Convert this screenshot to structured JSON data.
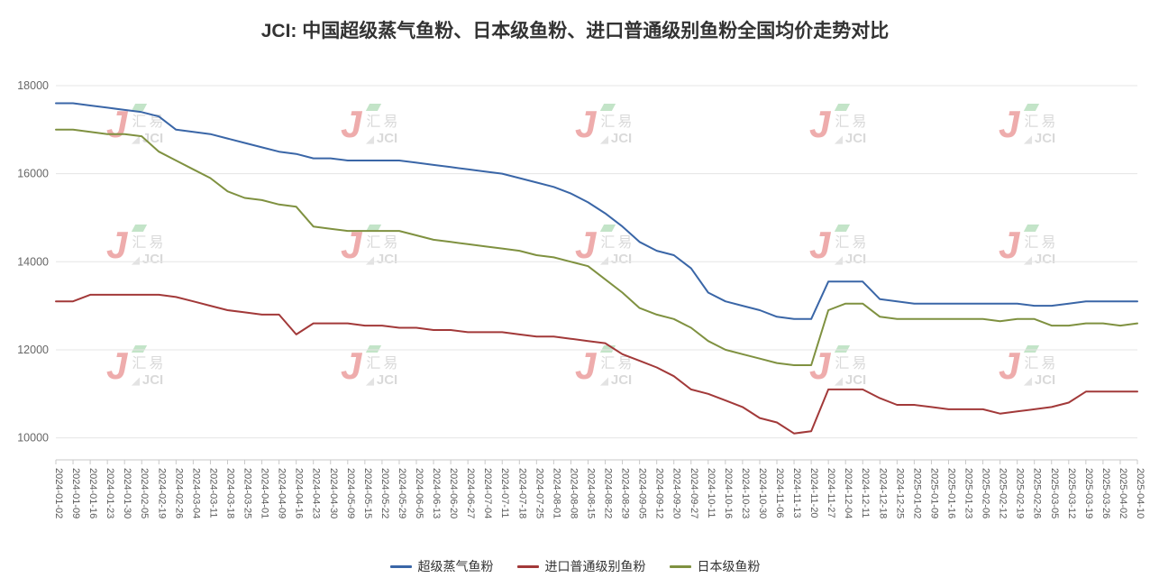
{
  "watermark": {
    "mark": "J",
    "text_cn": "汇易",
    "text_en": "JCI"
  },
  "chart_data": {
    "type": "line",
    "title": "JCI: 中国超级蒸气鱼粉、日本级鱼粉、进口普通级别鱼粉全国均价走势对比",
    "xlabel": "",
    "ylabel": "",
    "ylim": [
      9500,
      18000
    ],
    "yticks": [
      10000,
      12000,
      14000,
      16000,
      18000
    ],
    "grid": true,
    "legend_position": "bottom",
    "x": [
      "2024-01-02",
      "2024-01-09",
      "2024-01-16",
      "2024-01-23",
      "2024-01-30",
      "2024-02-05",
      "2024-02-19",
      "2024-02-26",
      "2024-03-04",
      "2024-03-11",
      "2024-03-18",
      "2024-03-25",
      "2024-04-01",
      "2024-04-09",
      "2024-04-16",
      "2024-04-23",
      "2024-04-30",
      "2024-05-09",
      "2024-05-15",
      "2024-05-22",
      "2024-05-29",
      "2024-06-05",
      "2024-06-13",
      "2024-06-20",
      "2024-06-27",
      "2024-07-04",
      "2024-07-11",
      "2024-07-18",
      "2024-07-25",
      "2024-08-01",
      "2024-08-08",
      "2024-08-15",
      "2024-08-22",
      "2024-08-29",
      "2024-09-05",
      "2024-09-12",
      "2024-09-20",
      "2024-09-27",
      "2024-10-11",
      "2024-10-16",
      "2024-10-23",
      "2024-10-30",
      "2024-11-06",
      "2024-11-13",
      "2024-11-20",
      "2024-11-27",
      "2024-12-04",
      "2024-12-11",
      "2024-12-18",
      "2024-12-25",
      "2025-01-02",
      "2025-01-09",
      "2025-01-16",
      "2025-01-23",
      "2025-02-06",
      "2025-02-12",
      "2025-02-19",
      "2025-02-26",
      "2025-03-05",
      "2025-03-12",
      "2025-03-19",
      "2025-03-26",
      "2025-04-02",
      "2025-04-10"
    ],
    "series": [
      {
        "name": "超级蒸气鱼粉",
        "color": "#3a66a7",
        "values": [
          17600,
          17600,
          17550,
          17500,
          17450,
          17400,
          17300,
          17000,
          16950,
          16900,
          16800,
          16700,
          16600,
          16500,
          16450,
          16350,
          16350,
          16300,
          16300,
          16300,
          16300,
          16250,
          16200,
          16150,
          16100,
          16050,
          16000,
          15900,
          15800,
          15700,
          15550,
          15350,
          15100,
          14800,
          14450,
          14250,
          14150,
          13850,
          13300,
          13100,
          13000,
          12900,
          12750,
          12700,
          12700,
          13550,
          13550,
          13550,
          13150,
          13100,
          13050,
          13050,
          13050,
          13050,
          13050,
          13050,
          13050,
          13000,
          13000,
          13050,
          13100,
          13100,
          13100,
          13100
        ]
      },
      {
        "name": "进口普通级别鱼粉",
        "color": "#a23939",
        "values": [
          13100,
          13100,
          13250,
          13250,
          13250,
          13250,
          13250,
          13200,
          13100,
          13000,
          12900,
          12850,
          12800,
          12800,
          12350,
          12600,
          12600,
          12600,
          12550,
          12550,
          12500,
          12500,
          12450,
          12450,
          12400,
          12400,
          12400,
          12350,
          12300,
          12300,
          12250,
          12200,
          12150,
          11900,
          11750,
          11600,
          11400,
          11100,
          11000,
          10850,
          10700,
          10450,
          10350,
          10100,
          10150,
          11100,
          11100,
          11100,
          10900,
          10750,
          10750,
          10700,
          10650,
          10650,
          10650,
          10550,
          10600,
          10650,
          10700,
          10800,
          11050,
          11050,
          11050,
          11050
        ]
      },
      {
        "name": "日本级鱼粉",
        "color": "#7f9140",
        "values": [
          17000,
          17000,
          16950,
          16900,
          16900,
          16850,
          16500,
          16300,
          16100,
          15900,
          15600,
          15450,
          15400,
          15300,
          15250,
          14800,
          14750,
          14700,
          14700,
          14700,
          14700,
          14600,
          14500,
          14450,
          14400,
          14350,
          14300,
          14250,
          14150,
          14100,
          14000,
          13900,
          13600,
          13300,
          12950,
          12800,
          12700,
          12500,
          12200,
          12000,
          11900,
          11800,
          11700,
          11650,
          11650,
          12900,
          13050,
          13050,
          12750,
          12700,
          12700,
          12700,
          12700,
          12700,
          12700,
          12650,
          12700,
          12700,
          12550,
          12550,
          12600,
          12600,
          12550,
          12600
        ]
      }
    ]
  }
}
